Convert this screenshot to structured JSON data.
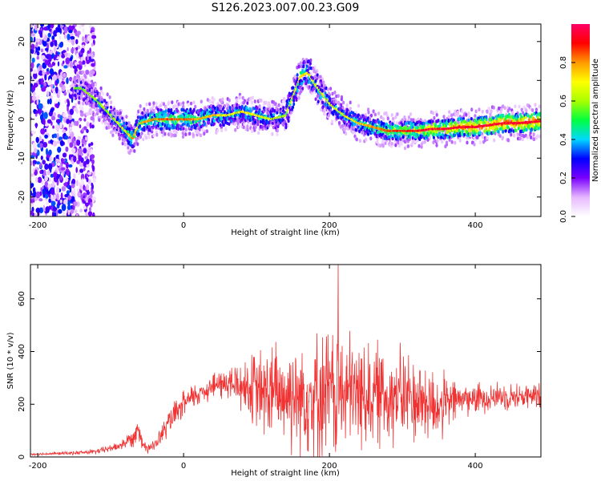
{
  "title": "S126.2023.007.00.23.G09",
  "chart_data": [
    {
      "type": "heatmap",
      "xlabel": "Height of straight line (km)",
      "ylabel": "Frequency (Hz)",
      "xlim": [
        -210,
        490
      ],
      "ylim": [
        -25,
        24.5
      ],
      "xticks": [
        -200,
        0,
        200,
        400
      ],
      "yticks": [
        -20,
        -10,
        0,
        10,
        20
      ],
      "colorbar": {
        "label": "Normalized spectral amplitude",
        "range": [
          0,
          1
        ],
        "ticks": [
          "0.0",
          "0.2",
          "0.4",
          "0.6",
          "0.8"
        ],
        "colormap": [
          "#ffffff",
          "#e6b8ff",
          "#7a00ff",
          "#0000ff",
          "#00d8ff",
          "#00ff40",
          "#a8ff00",
          "#ffff00",
          "#ff9900",
          "#ff0000",
          "#ff0066"
        ]
      },
      "ridge": {
        "x": [
          -140,
          -120,
          -100,
          -80,
          -70,
          -60,
          -40,
          -20,
          0,
          20,
          40,
          60,
          80,
          100,
          120,
          140,
          150,
          160,
          170,
          180,
          200,
          220,
          240,
          260,
          280,
          300,
          320,
          340,
          360,
          380,
          400,
          420,
          440,
          460,
          490
        ],
        "y": [
          8,
          5,
          1,
          -3,
          -5,
          -1,
          0,
          0,
          0,
          0,
          1,
          1,
          2,
          1,
          0,
          1,
          6,
          11,
          12,
          9,
          4,
          1,
          -1,
          -2,
          -3,
          -3,
          -3,
          -2.5,
          -2.5,
          -2,
          -2,
          -1.5,
          -1,
          -1,
          -0.5
        ],
        "amplitude": [
          0.25,
          0.3,
          0.3,
          0.4,
          0.5,
          0.45,
          0.5,
          0.55,
          0.55,
          0.5,
          0.45,
          0.4,
          0.4,
          0.4,
          0.35,
          0.3,
          0.4,
          0.45,
          0.4,
          0.35,
          0.35,
          0.4,
          0.45,
          0.5,
          0.55,
          0.6,
          0.65,
          0.7,
          0.75,
          0.8,
          0.85,
          0.85,
          0.85,
          0.85,
          0.85
        ]
      }
    },
    {
      "type": "line",
      "xlabel": "Height of straight line (km)",
      "ylabel": "SNR (10 * v/v)",
      "xlim": [
        -210,
        490
      ],
      "ylim": [
        0,
        730
      ],
      "xticks": [
        -200,
        0,
        200,
        400
      ],
      "yticks": [
        0,
        200,
        400,
        600
      ],
      "color": "#f03232",
      "envelope": {
        "x": [
          -210,
          -150,
          -120,
          -90,
          -70,
          -62,
          -55,
          -40,
          -20,
          0,
          20,
          40,
          60,
          80,
          100,
          120,
          140,
          160,
          180,
          200,
          210,
          220,
          240,
          260,
          280,
          300,
          320,
          340,
          350,
          360,
          380,
          400,
          420,
          440,
          460,
          490
        ],
        "mean": [
          10,
          15,
          20,
          40,
          70,
          120,
          40,
          40,
          130,
          200,
          240,
          270,
          280,
          270,
          250,
          240,
          240,
          235,
          240,
          240,
          245,
          240,
          240,
          240,
          235,
          230,
          220,
          200,
          190,
          200,
          220,
          220,
          230,
          230,
          230,
          230
        ],
        "amp": [
          5,
          8,
          12,
          20,
          40,
          60,
          30,
          25,
          60,
          60,
          60,
          60,
          80,
          120,
          180,
          230,
          250,
          270,
          280,
          300,
          300,
          280,
          260,
          240,
          230,
          220,
          200,
          180,
          170,
          130,
          80,
          70,
          70,
          60,
          60,
          60
        ]
      },
      "peak": {
        "x": 212,
        "y": 730
      }
    }
  ]
}
